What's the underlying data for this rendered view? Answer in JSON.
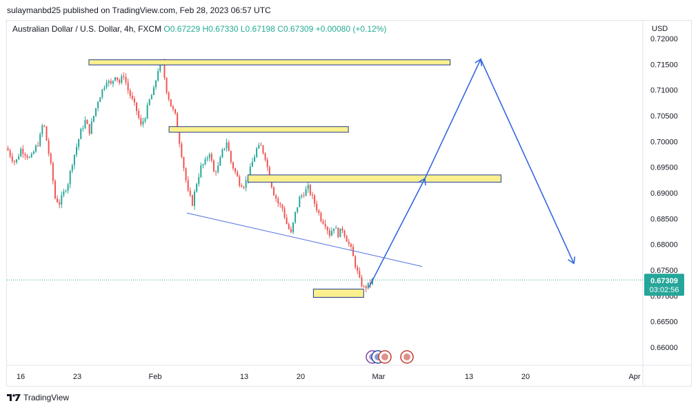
{
  "header": {
    "publisher_line": "sulaymanbd25 published on TradingView.com, Feb 28, 2023 06:57 UTC"
  },
  "legend": {
    "symbol": "Australian Dollar / U.S. Dollar, 4h, FXCM",
    "ohlc": "O0.67229 H0.67330 L0.67198 C0.67309 +0.00080 (+0.12%)"
  },
  "footer": {
    "brand": "TradingView",
    "logo_icon": "tradingview-logo-icon"
  },
  "chart_data": {
    "type": "candlestick",
    "currency": "USD",
    "y_ticks": [
      "0.72000",
      "0.71500",
      "0.71000",
      "0.70500",
      "0.70000",
      "0.69500",
      "0.69000",
      "0.68500",
      "0.68000",
      "0.67500",
      "0.67000",
      "0.66500",
      "0.66000"
    ],
    "ylim": [
      0.6565,
      0.7235
    ],
    "x_ticks": [
      "16",
      "23",
      "Feb",
      "13",
      "20",
      "Mar",
      "13",
      "20",
      "Apr"
    ],
    "last_price": "0.67309",
    "countdown": "03:02:56",
    "colors": {
      "up": "#26a69a",
      "down": "#ef5350",
      "zone_fill": "#faf08e",
      "zone_border": "#1e3a8a",
      "projection": "#3366e0",
      "trendline": "#4f6fe0",
      "price_line": "#26a69a"
    },
    "price_path": [
      [
        0,
        0.6987
      ],
      [
        4,
        0.697
      ],
      [
        8,
        0.6958
      ],
      [
        13,
        0.6985
      ],
      [
        18,
        0.6975
      ],
      [
        22,
        0.6965
      ],
      [
        26,
        0.6985
      ],
      [
        30,
        0.7
      ],
      [
        34,
        0.704
      ],
      [
        38,
        0.699
      ],
      [
        42,
        0.694
      ],
      [
        45,
        0.689
      ],
      [
        49,
        0.688
      ],
      [
        53,
        0.69
      ],
      [
        57,
        0.692
      ],
      [
        61,
        0.696
      ],
      [
        65,
        0.699
      ],
      [
        69,
        0.702
      ],
      [
        73,
        0.704
      ],
      [
        77,
        0.702
      ],
      [
        81,
        0.705
      ],
      [
        85,
        0.708
      ],
      [
        89,
        0.71
      ],
      [
        93,
        0.712
      ],
      [
        97,
        0.711
      ],
      [
        101,
        0.713
      ],
      [
        105,
        0.7115
      ],
      [
        109,
        0.713
      ],
      [
        113,
        0.71
      ],
      [
        117,
        0.708
      ],
      [
        121,
        0.706
      ],
      [
        125,
        0.703
      ],
      [
        129,
        0.705
      ],
      [
        133,
        0.708
      ],
      [
        137,
        0.71
      ],
      [
        141,
        0.714
      ],
      [
        145,
        0.715
      ],
      [
        149,
        0.71
      ],
      [
        153,
        0.707
      ],
      [
        157,
        0.705
      ],
      [
        161,
        0.7
      ],
      [
        165,
        0.695
      ],
      [
        169,
        0.69
      ],
      [
        173,
        0.688
      ],
      [
        177,
        0.692
      ],
      [
        181,
        0.695
      ],
      [
        185,
        0.696
      ],
      [
        189,
        0.698
      ],
      [
        193,
        0.694
      ],
      [
        197,
        0.695
      ],
      [
        201,
        0.698
      ],
      [
        205,
        0.7
      ],
      [
        209,
        0.696
      ],
      [
        213,
        0.694
      ],
      [
        217,
        0.692
      ],
      [
        221,
        0.6915
      ],
      [
        225,
        0.693
      ],
      [
        229,
        0.696
      ],
      [
        233,
        0.6985
      ],
      [
        237,
        0.699
      ],
      [
        241,
        0.697
      ],
      [
        245,
        0.693
      ],
      [
        249,
        0.69
      ],
      [
        253,
        0.688
      ],
      [
        257,
        0.687
      ],
      [
        261,
        0.684
      ],
      [
        265,
        0.682
      ],
      [
        269,
        0.686
      ],
      [
        273,
        0.689
      ],
      [
        277,
        0.69
      ],
      [
        281,
        0.691
      ],
      [
        285,
        0.689
      ],
      [
        289,
        0.687
      ],
      [
        293,
        0.685
      ],
      [
        297,
        0.684
      ],
      [
        301,
        0.682
      ],
      [
        305,
        0.6835
      ],
      [
        309,
        0.682
      ],
      [
        313,
        0.683
      ],
      [
        317,
        0.681
      ],
      [
        321,
        0.679
      ],
      [
        325,
        0.676
      ],
      [
        329,
        0.673
      ],
      [
        333,
        0.6715
      ],
      [
        337,
        0.672
      ],
      [
        341,
        0.673
      ]
    ],
    "zones": [
      {
        "from": 0.7159,
        "to": 0.7149,
        "x_start": 0.129,
        "x_end": 0.697
      },
      {
        "from": 0.7029,
        "to": 0.7018,
        "x_start": 0.255,
        "x_end": 0.537
      },
      {
        "from": 0.6935,
        "to": 0.6921,
        "x_start": 0.379,
        "x_end": 0.777
      },
      {
        "from": 0.6713,
        "to": 0.6697,
        "x_start": 0.482,
        "x_end": 0.561
      }
    ]
  }
}
